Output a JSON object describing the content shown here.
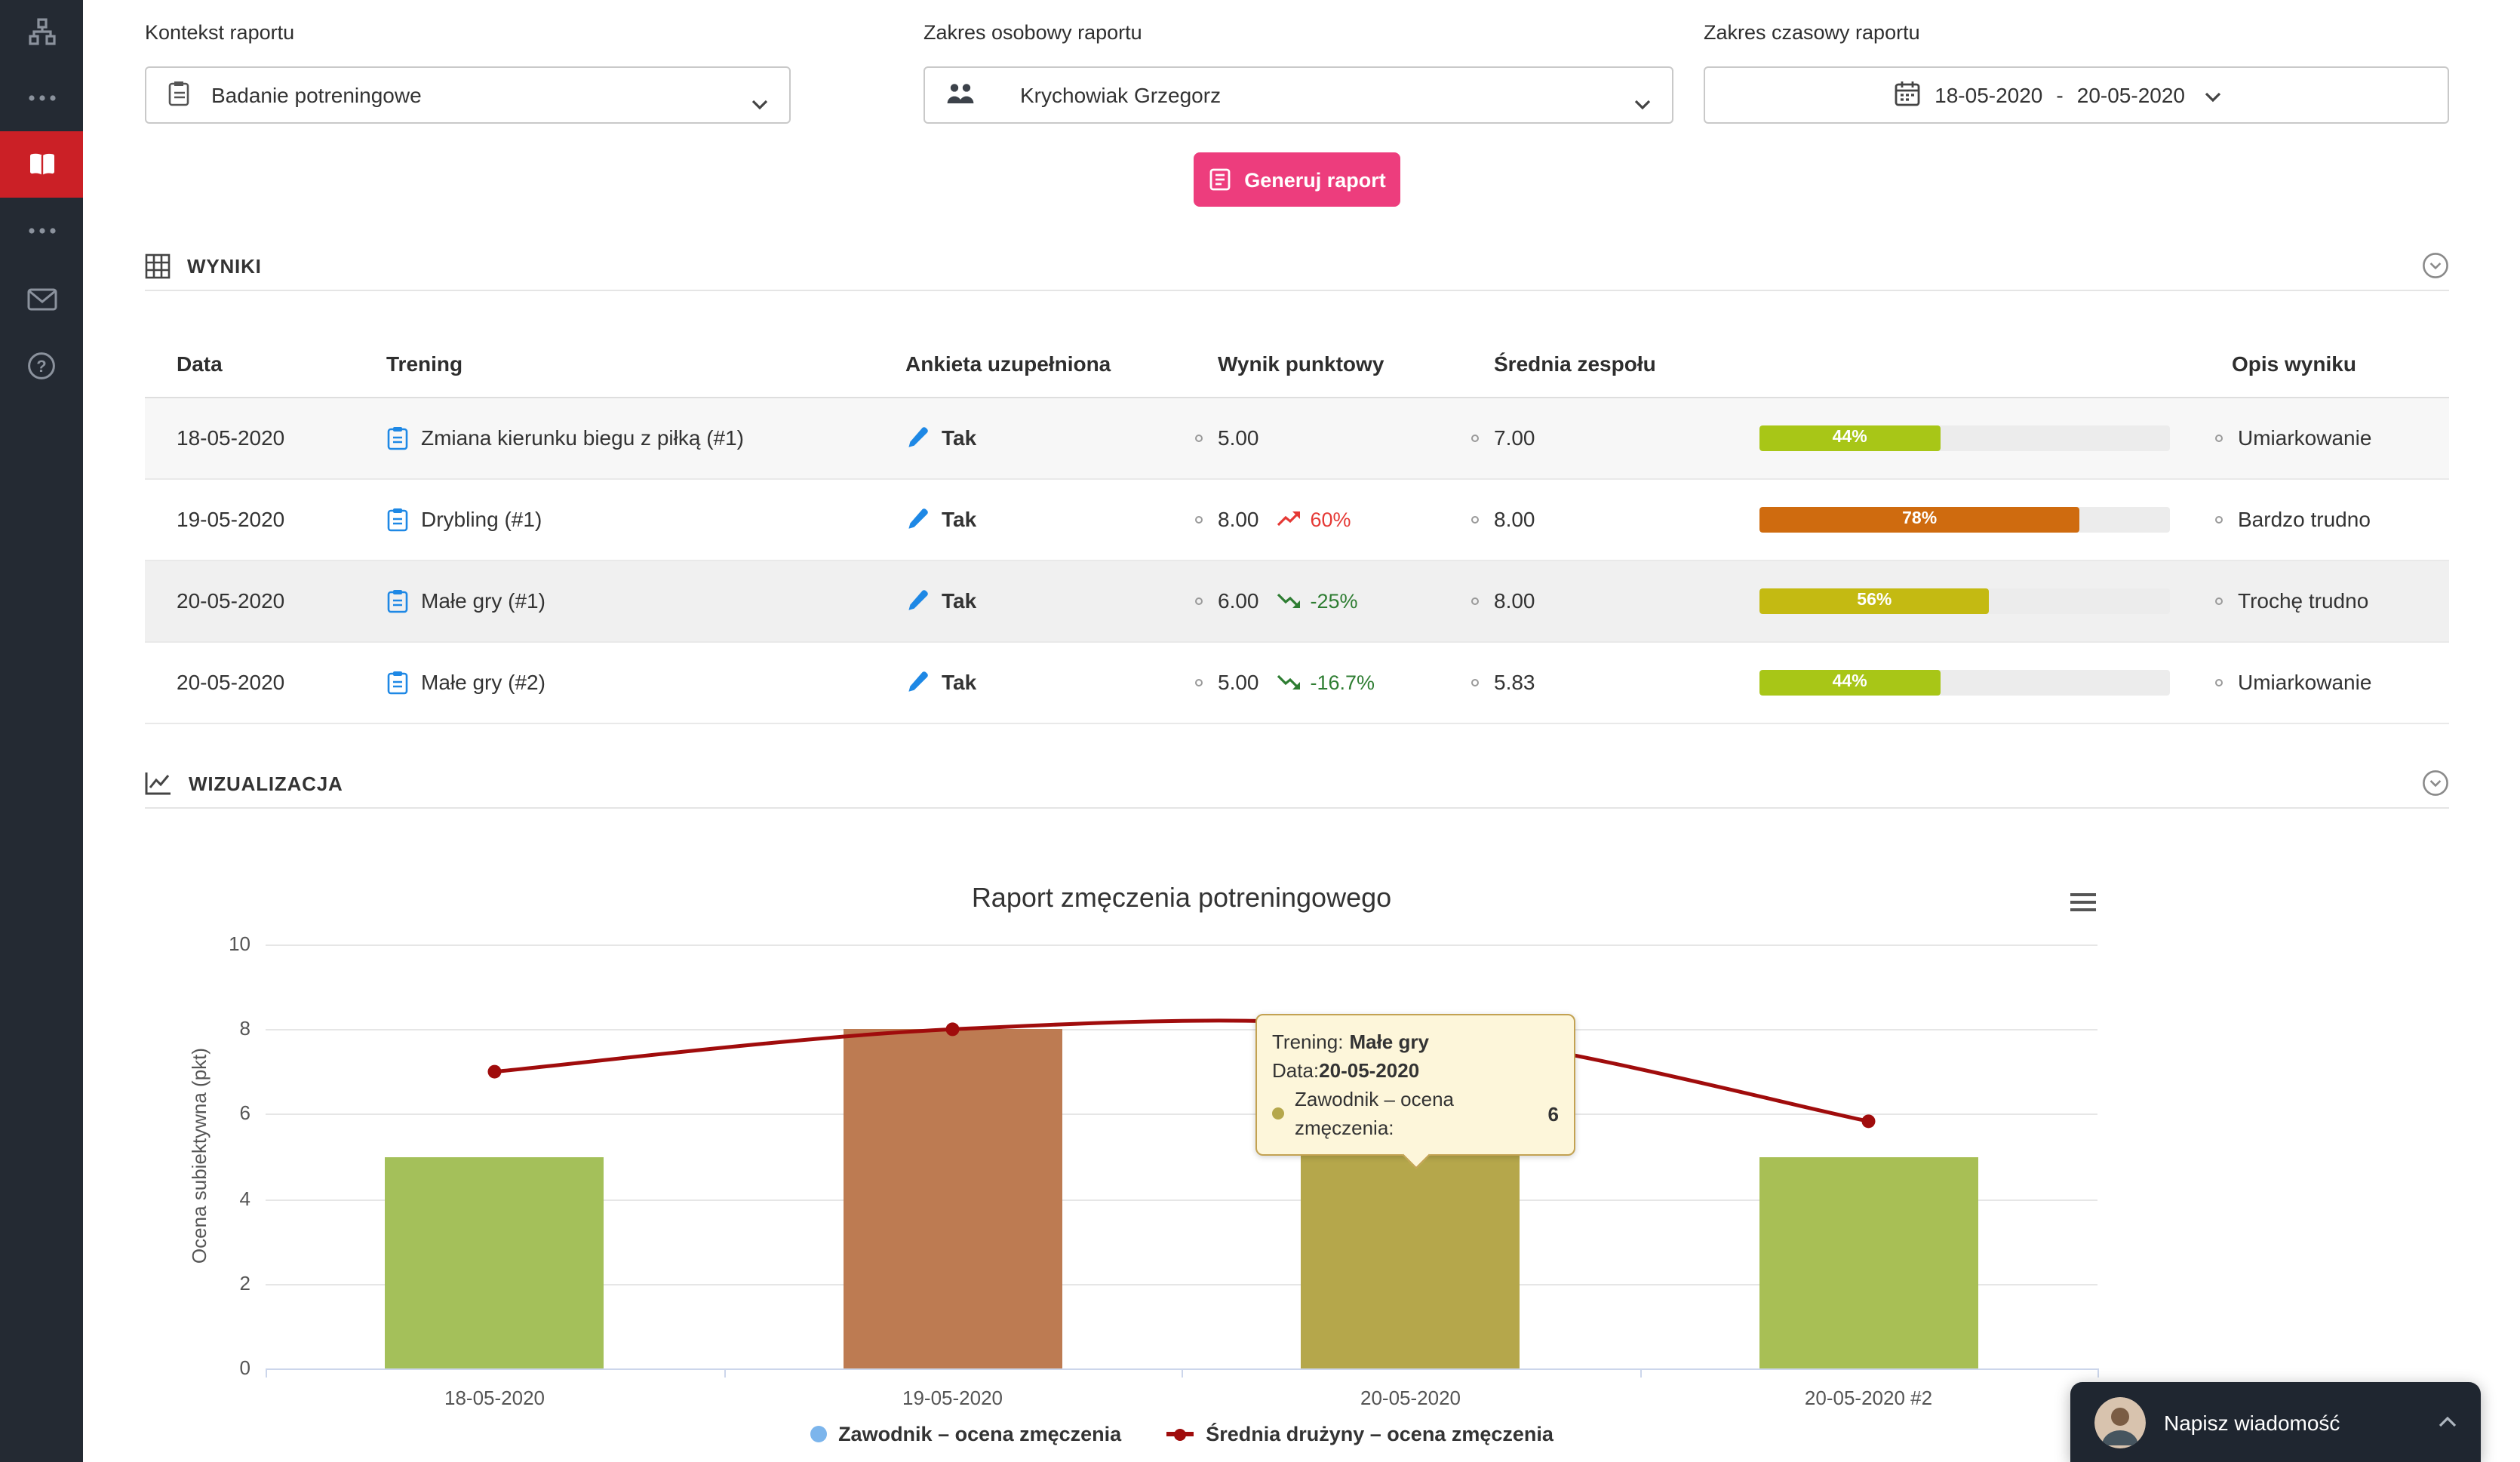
{
  "colors": {
    "accent-pink": "#ed3d7d",
    "sidebar-bg": "#242a33",
    "sidebar-active": "#cb2026",
    "icon-blue": "#1e88e5",
    "trend-up": "#e53935",
    "trend-down": "#2e7d32",
    "progress-track": "#ececec",
    "line-red": "#a00c0c",
    "legend-blue": "#7cb5ec",
    "chat-bg": "#1f2630"
  },
  "sidebar": {
    "items": [
      "app-logo",
      "more-menu-top",
      "reports-book (active)",
      "more-menu-bottom",
      "messages",
      "help"
    ]
  },
  "filters": {
    "context": {
      "label": "Kontekst raportu",
      "value": "Badanie potreningowe"
    },
    "person": {
      "label": "Zakres osobowy raportu",
      "value": "Krychowiak Grzegorz"
    },
    "time": {
      "label": "Zakres czasowy raportu",
      "from": "18-05-2020",
      "separator": "-",
      "to": "20-05-2020"
    }
  },
  "generate": {
    "label": "Generuj raport"
  },
  "results": {
    "title": "WYNIKI",
    "columns": {
      "date": "Data",
      "training": "Trening",
      "survey": "Ankieta uzupełniona",
      "score": "Wynik punktowy",
      "team_avg": "Średnia zespołu",
      "progress": "",
      "description": "Opis wyniku"
    },
    "rows": [
      {
        "date": "18-05-2020",
        "training": "Zmiana kierunku biegu z piłką (#1)",
        "survey": "Tak",
        "score": "5.00",
        "trend": null,
        "team_avg": "7.00",
        "progress_percent": 44,
        "progress_label": "44%",
        "progress_color": "#a8c617",
        "description": "Umiarkowanie",
        "highlighted": false
      },
      {
        "date": "19-05-2020",
        "training": "Drybling (#1)",
        "survey": "Tak",
        "score": "8.00",
        "trend": {
          "dir": "up",
          "label": "60%"
        },
        "team_avg": "8.00",
        "progress_percent": 78,
        "progress_label": "78%",
        "progress_color": "#cf6b0f",
        "description": "Bardzo trudno",
        "highlighted": false
      },
      {
        "date": "20-05-2020",
        "training": "Małe gry (#1)",
        "survey": "Tak",
        "score": "6.00",
        "trend": {
          "dir": "down",
          "label": "-25%"
        },
        "team_avg": "8.00",
        "progress_percent": 56,
        "progress_label": "56%",
        "progress_color": "#c4ba12",
        "description": "Trochę trudno",
        "highlighted": true
      },
      {
        "date": "20-05-2020",
        "training": "Małe gry (#2)",
        "survey": "Tak",
        "score": "5.00",
        "trend": {
          "dir": "down",
          "label": "-16.7%"
        },
        "team_avg": "5.83",
        "progress_percent": 44,
        "progress_label": "44%",
        "progress_color": "#a8c617",
        "description": "Umiarkowanie",
        "highlighted": false
      }
    ]
  },
  "visualization": {
    "title": "WIZUALIZACJA",
    "tooltip": {
      "training_label": "Trening:",
      "training_value": "Małe gry",
      "date_label": "Data:",
      "date_value": "20-05-2020",
      "series_label": "Zawodnik – ocena zmęczenia:",
      "series_value": "6",
      "marker_color": "#b5a74b"
    }
  },
  "chart_data": {
    "type": "bar",
    "title": "Raport zmęczenia potreningowego",
    "categories": [
      "18-05-2020",
      "19-05-2020",
      "20-05-2020",
      "20-05-2020 #2"
    ],
    "series": [
      {
        "name": "Zawodnik – ocena zmęczenia",
        "type": "column",
        "values": [
          5,
          8,
          6,
          5
        ],
        "colors": [
          "#a4c05a",
          "#bd7b52",
          "#b5a74b",
          "#a8bf55"
        ],
        "marker_color": "#7cb5ec"
      },
      {
        "name": "Średnia drużyny – ocena zmęczenia",
        "type": "line",
        "values": [
          7,
          8,
          8,
          5.83
        ],
        "color": "#a00c0c"
      }
    ],
    "xlabel": "",
    "ylabel": "Ocena subiektywna (pkt)",
    "ylim": [
      0,
      10
    ],
    "yticks": [
      0,
      2,
      4,
      6,
      8,
      10
    ],
    "grid": true,
    "legend_position": "bottom"
  },
  "chat": {
    "label": "Napisz wiadomość"
  }
}
